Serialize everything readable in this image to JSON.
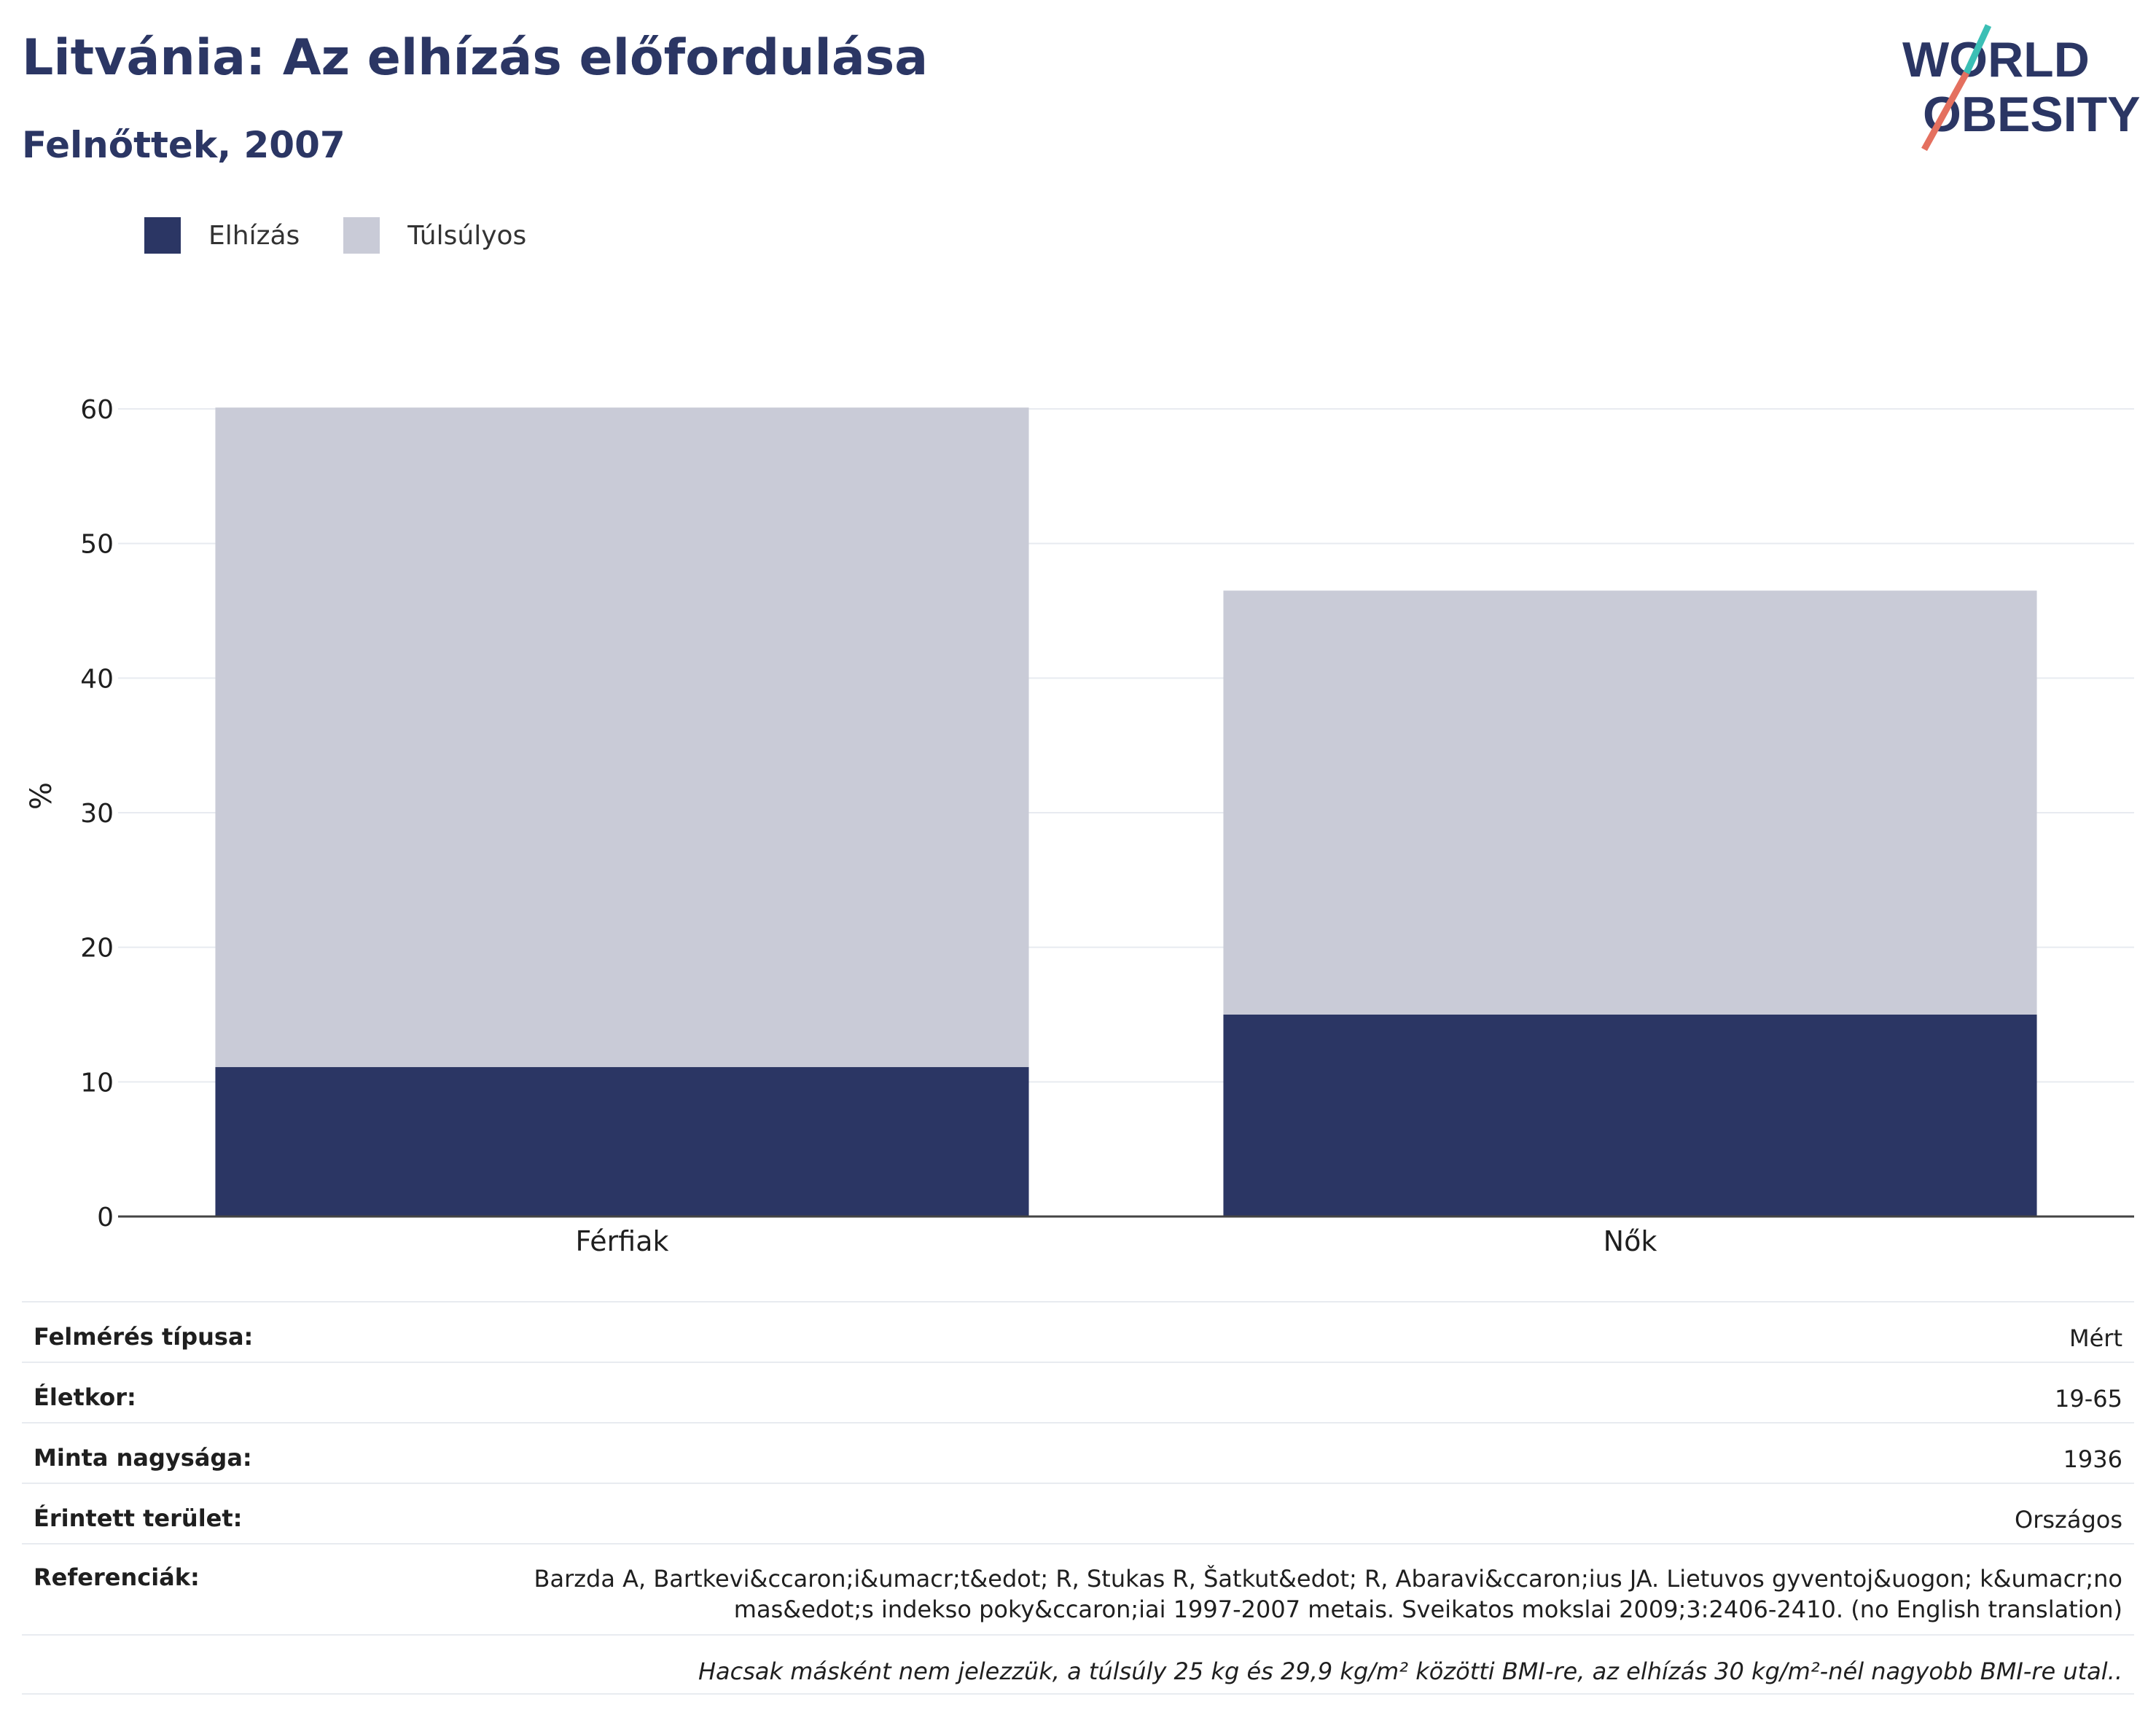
{
  "header": {
    "title": "Litvánia: Az elhízás előfordulása",
    "subtitle": "Felnőttek, 2007"
  },
  "logo": {
    "line1": "WORLD",
    "line2": "OBESITY",
    "colors": {
      "text": "#2b3664",
      "slash_teal": "#3bbfb5",
      "slash_red": "#e4705f"
    }
  },
  "legend": [
    {
      "label": "Elhízás",
      "color": "#2b3664"
    },
    {
      "label": "Túlsúlyos",
      "color": "#c9cbd7"
    }
  ],
  "chart_data": {
    "type": "bar",
    "stacked": true,
    "categories": [
      "Férfiak",
      "Nők"
    ],
    "series": [
      {
        "name": "Elhízás",
        "values": [
          11.1,
          15.0
        ],
        "color": "#2b3664"
      },
      {
        "name": "Túlsúlyos",
        "values": [
          49.0,
          31.5
        ],
        "color": "#c9cbd7"
      }
    ],
    "ylabel": "%",
    "ylim": [
      0,
      60
    ],
    "yticks": [
      0,
      10,
      20,
      30,
      40,
      50,
      60
    ],
    "grid": true,
    "legend_position": "top-left"
  },
  "info": [
    {
      "label": "Felmérés típusa:",
      "value": "Mért"
    },
    {
      "label": "Életkor:",
      "value": "19-65"
    },
    {
      "label": "Minta nagysága:",
      "value": "1936"
    },
    {
      "label": "Érintett terület:",
      "value": "Országos"
    },
    {
      "label": "Referenciák:",
      "value": "Barzda A, Bartkevi&ccaron;i&umacr;t&edot; R, Stukas R, Šatkut&edot; R, Abaravi&ccaron;ius JA. Lietuvos gyventoj&uogon; k&umacr;no mas&edot;s indekso poky&ccaron;iai 1997-2007 metais. Sveikatos mokslai 2009;3:2406-2410. (no English translation)"
    }
  ],
  "note": "Hacsak másként nem jelezzük, a túlsúly 25 kg és 29,9 kg/m² közötti BMI-re, az elhízás 30 kg/m²-nél nagyobb BMI-re utal.."
}
